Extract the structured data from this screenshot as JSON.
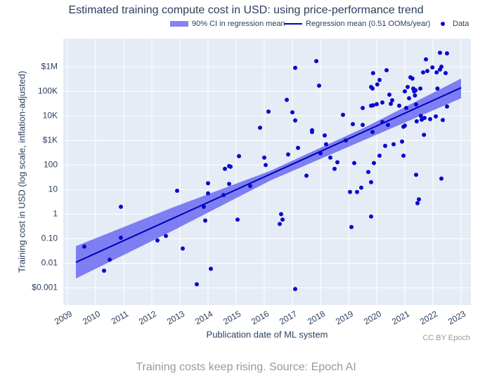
{
  "chart_data": {
    "type": "scatter",
    "title": "Estimated training compute cost in USD: using price-performance trend",
    "xlabel": "Publication date of ML system",
    "ylabel": "Training cost in USD (log scale, inflation-adjusted)",
    "credit": "CC BY Epoch",
    "caption": "Training costs keep rising. Source: Epoch AI",
    "log_y": true,
    "grid": true,
    "xlim": [
      2008.85,
      2023.35
    ],
    "ylim": [
      0.0002,
      14000000
    ],
    "xticks": [
      2009,
      2010,
      2011,
      2012,
      2013,
      2014,
      2015,
      2016,
      2017,
      2018,
      2019,
      2020,
      2021,
      2022,
      2023
    ],
    "yticks": [
      {
        "value": 0.001,
        "label": "$0.001"
      },
      {
        "value": 0.01,
        "label": "0.01"
      },
      {
        "value": 0.1,
        "label": "0.10"
      },
      1,
      10,
      100,
      {
        "value": 1000,
        "label": "$1K"
      },
      {
        "value": 10000,
        "label": "10K"
      },
      {
        "value": 100000,
        "label": "100K"
      },
      {
        "value": 1000000,
        "label": "$1M"
      }
    ],
    "series": [
      {
        "name": "90% CI in regression mean",
        "type": "band",
        "color": "#5a5af0",
        "x": [
          2009.3,
          2012.7,
          2016.2,
          2019.6,
          2023
        ],
        "upper": [
          0.05,
          1.8,
          57,
          3500,
          330000
        ],
        "lower": [
          0.0024,
          0.2,
          23,
          1100,
          52000
        ]
      },
      {
        "name": "Regression mean (0.51 OOMs/year)",
        "type": "line",
        "color": "#0000bb",
        "x": [
          2009.3,
          2023
        ],
        "values": [
          0.011,
          140000
        ]
      },
      {
        "name": "Data",
        "type": "scatter",
        "color": "#0a0acc",
        "x": [
          2009.6,
          2010.3,
          2010.5,
          2010.9,
          2010.9,
          2012.2,
          2012.5,
          2012.9,
          2013.1,
          2013.6,
          2013.85,
          2013.9,
          2014.0,
          2014.0,
          2014.1,
          2014.55,
          2014.6,
          2014.75,
          2014.8,
          2014.75,
          2015.05,
          2015.1,
          2015.5,
          2015.85,
          2016.0,
          2016.05,
          2016.15,
          2016.55,
          2016.6,
          2016.65,
          2016.8,
          2016.85,
          2017.0,
          2017.1,
          2017.1,
          2017.1,
          2017.2,
          2017.5,
          2017.85,
          2017.95,
          2018.0,
          2017.7,
          2017.7,
          2018.15,
          2018.2,
          2018.35,
          2018.5,
          2018.6,
          2018.8,
          2018.9,
          2019.05,
          2019.1,
          2019.15,
          2019.2,
          2019.3,
          2019.45,
          2019.5,
          2019.5,
          2019.7,
          2019.8,
          2019.8,
          2019.8,
          2019.8,
          2019.85,
          2019.87,
          2019.87,
          2019.85,
          2019.9,
          2020.0,
          2020.02,
          2020.1,
          2020.1,
          2020.2,
          2020.2,
          2020.3,
          2020.35,
          2020.4,
          2020.45,
          2020.5,
          2020.55,
          2020.6,
          2020.8,
          2020.9,
          2020.95,
          2020.95,
          2021.0,
          2021.0,
          2021.05,
          2021.1,
          2021.15,
          2021.2,
          2021.27,
          2021.3,
          2021.33,
          2021.36,
          2021.38,
          2021.4,
          2021.4,
          2021.42,
          2021.45,
          2021.5,
          2021.55,
          2021.57,
          2021.6,
          2021.65,
          2021.68,
          2021.7,
          2021.8,
          2021.9,
          2021.75,
          2021.98,
          2022.1,
          2022.13,
          2022.16,
          2022.25,
          2022.25,
          2022.3,
          2022.3,
          2022.35,
          2022.45,
          2022.5,
          2022.5
        ],
        "values": [
          0.048,
          0.005,
          0.014,
          2,
          0.11,
          0.085,
          0.13,
          9,
          0.04,
          0.0014,
          2,
          0.55,
          7,
          18,
          0.006,
          6,
          70,
          90,
          85,
          17,
          0.6,
          230,
          14,
          3300,
          200,
          100,
          15000,
          0.4,
          1,
          0.6,
          45000,
          270,
          14000,
          6500,
          900000,
          0.0009,
          500,
          37,
          1700000,
          170000,
          300,
          2600,
          2200,
          1600,
          700,
          200,
          70,
          130,
          11000,
          1000,
          8,
          0.3,
          4600,
          120,
          8,
          12,
          4300,
          21000,
          52,
          150000,
          26000,
          0.8,
          20,
          130000,
          27000,
          550000,
          2200,
          120,
          30000,
          190000,
          240,
          290000,
          35000,
          5600,
          600,
          720000,
          4300,
          73000,
          31000,
          43000,
          700,
          26000,
          900,
          240,
          3600,
          100000,
          4000,
          21000,
          150000,
          52000,
          370000,
          330000,
          130000,
          100000,
          68000,
          110000,
          29000,
          40,
          6000,
          2.8,
          4,
          130000,
          10000,
          7000,
          590000,
          1700,
          8300,
          670000,
          7400,
          2000000,
          940000,
          9500,
          590000,
          130000,
          3700000,
          770000,
          1000000,
          28,
          6800,
          550000,
          3500000,
          24000
        ]
      }
    ]
  }
}
